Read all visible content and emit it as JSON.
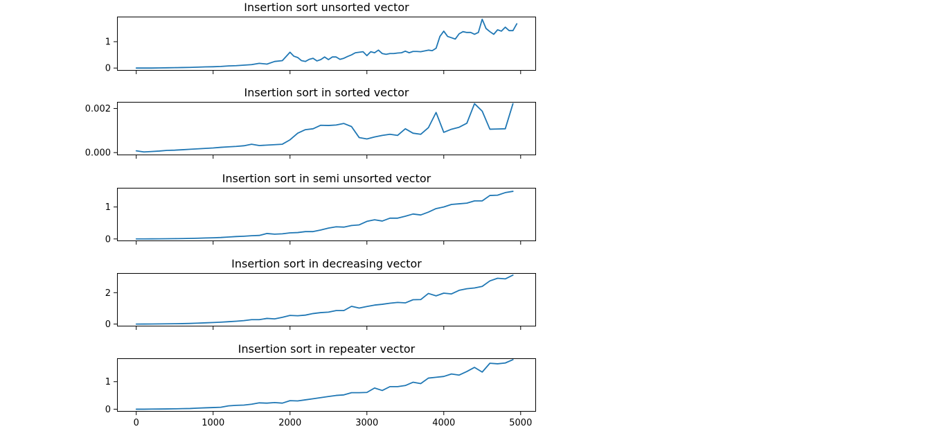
{
  "colors": {
    "line": "#1f77b4",
    "axes": "#000000",
    "background": "#ffffff"
  },
  "chart_data": [
    {
      "type": "line",
      "title": "Insertion sort unsorted vector",
      "xlim": [
        -250,
        5200
      ],
      "ylim": [
        -0.1,
        1.95
      ],
      "xticks": [
        0,
        1000,
        2000,
        3000,
        4000,
        5000
      ],
      "xtick_labels": [
        "",
        "",
        "",
        "",
        "",
        ""
      ],
      "yticks": [
        0,
        1
      ],
      "ytick_labels": [
        "0",
        "1"
      ],
      "x": [
        0,
        100,
        200,
        300,
        400,
        500,
        600,
        700,
        800,
        900,
        1000,
        1100,
        1200,
        1300,
        1400,
        1500,
        1600,
        1700,
        1800,
        1900,
        2000,
        2050,
        2100,
        2150,
        2200,
        2250,
        2300,
        2350,
        2400,
        2450,
        2500,
        2550,
        2600,
        2650,
        2700,
        2750,
        2800,
        2850,
        2900,
        2950,
        3000,
        3050,
        3100,
        3150,
        3200,
        3250,
        3300,
        3350,
        3400,
        3450,
        3500,
        3550,
        3600,
        3650,
        3700,
        3750,
        3800,
        3850,
        3900,
        3950,
        4000,
        4050,
        4100,
        4150,
        4200,
        4250,
        4300,
        4350,
        4400,
        4450,
        4500,
        4550,
        4600,
        4650,
        4700,
        4750,
        4800,
        4850,
        4900,
        4950
      ],
      "y": [
        0.0,
        0.0,
        0.0,
        0.005,
        0.01,
        0.015,
        0.02,
        0.025,
        0.035,
        0.045,
        0.05,
        0.06,
        0.08,
        0.09,
        0.11,
        0.13,
        0.18,
        0.15,
        0.25,
        0.28,
        0.6,
        0.45,
        0.4,
        0.28,
        0.25,
        0.33,
        0.37,
        0.27,
        0.32,
        0.42,
        0.32,
        0.42,
        0.42,
        0.33,
        0.37,
        0.44,
        0.5,
        0.58,
        0.6,
        0.62,
        0.47,
        0.62,
        0.58,
        0.68,
        0.55,
        0.52,
        0.55,
        0.55,
        0.57,
        0.58,
        0.64,
        0.58,
        0.63,
        0.63,
        0.62,
        0.65,
        0.68,
        0.66,
        0.75,
        1.2,
        1.4,
        1.2,
        1.15,
        1.1,
        1.3,
        1.38,
        1.35,
        1.35,
        1.28,
        1.35,
        1.85,
        1.5,
        1.38,
        1.28,
        1.45,
        1.4,
        1.55,
        1.42,
        1.42,
        1.68
      ]
    },
    {
      "type": "line",
      "title": "Insertion sort in sorted vector",
      "xlim": [
        -250,
        5200
      ],
      "ylim": [
        -0.00012,
        0.0023
      ],
      "xticks": [
        0,
        1000,
        2000,
        3000,
        4000,
        5000
      ],
      "xtick_labels": [
        "",
        "",
        "",
        "",
        "",
        ""
      ],
      "yticks": [
        0,
        0.002
      ],
      "ytick_labels": [
        "0.000",
        "0.002"
      ],
      "x": [
        0,
        100,
        200,
        300,
        400,
        500,
        600,
        700,
        800,
        900,
        1000,
        1100,
        1200,
        1300,
        1400,
        1500,
        1600,
        1700,
        1800,
        1900,
        2000,
        2100,
        2200,
        2300,
        2400,
        2500,
        2600,
        2700,
        2800,
        2900,
        3000,
        3100,
        3200,
        3300,
        3400,
        3500,
        3600,
        3700,
        3800,
        3900,
        4000,
        4100,
        4200,
        4300,
        4400,
        4500,
        4600,
        4700,
        4800,
        4900
      ],
      "y": [
        8e-05,
        3e-05,
        5e-05,
        7e-05,
        0.0001,
        0.00011,
        0.00013,
        0.00015,
        0.00017,
        0.00019,
        0.00021,
        0.00024,
        0.00026,
        0.00028,
        0.00031,
        0.00038,
        0.00032,
        0.00034,
        0.00036,
        0.00038,
        0.00058,
        0.00088,
        0.00104,
        0.00108,
        0.00124,
        0.00123,
        0.00125,
        0.00132,
        0.00118,
        0.00068,
        0.00062,
        0.00071,
        0.00078,
        0.00083,
        0.00078,
        0.00108,
        0.00088,
        0.00083,
        0.00113,
        0.00182,
        0.00092,
        0.00106,
        0.00115,
        0.00133,
        0.00222,
        0.00188,
        0.00106,
        0.00107,
        0.00108,
        0.00222
      ]
    },
    {
      "type": "line",
      "title": "Insertion sort in semi unsorted vector",
      "xlim": [
        -250,
        5200
      ],
      "ylim": [
        -0.07,
        1.6
      ],
      "xticks": [
        0,
        1000,
        2000,
        3000,
        4000,
        5000
      ],
      "xtick_labels": [
        "",
        "",
        "",
        "",
        "",
        ""
      ],
      "yticks": [
        0,
        1
      ],
      "ytick_labels": [
        "0",
        "1"
      ],
      "x": [
        0,
        100,
        200,
        300,
        400,
        500,
        600,
        700,
        800,
        900,
        1000,
        1100,
        1200,
        1300,
        1400,
        1500,
        1600,
        1700,
        1800,
        1900,
        2000,
        2100,
        2200,
        2300,
        2400,
        2500,
        2600,
        2700,
        2800,
        2900,
        3000,
        3100,
        3200,
        3300,
        3400,
        3500,
        3600,
        3700,
        3800,
        3900,
        4000,
        4100,
        4200,
        4300,
        4400,
        4500,
        4600,
        4700,
        4800,
        4900
      ],
      "y": [
        0.0,
        0.0,
        0.002,
        0.004,
        0.006,
        0.009,
        0.012,
        0.016,
        0.022,
        0.03,
        0.036,
        0.045,
        0.06,
        0.075,
        0.085,
        0.1,
        0.11,
        0.17,
        0.15,
        0.16,
        0.19,
        0.2,
        0.23,
        0.23,
        0.28,
        0.34,
        0.38,
        0.37,
        0.42,
        0.44,
        0.55,
        0.6,
        0.56,
        0.65,
        0.65,
        0.71,
        0.78,
        0.75,
        0.84,
        0.95,
        1.0,
        1.08,
        1.1,
        1.12,
        1.19,
        1.19,
        1.36,
        1.37,
        1.45,
        1.49
      ]
    },
    {
      "type": "line",
      "title": "Insertion sort in decreasing vector",
      "xlim": [
        -250,
        5200
      ],
      "ylim": [
        -0.15,
        3.25
      ],
      "xticks": [
        0,
        1000,
        2000,
        3000,
        4000,
        5000
      ],
      "xtick_labels": [
        "",
        "",
        "",
        "",
        "",
        ""
      ],
      "yticks": [
        0,
        2
      ],
      "ytick_labels": [
        "0",
        "2"
      ],
      "x": [
        0,
        100,
        200,
        300,
        400,
        500,
        600,
        700,
        800,
        900,
        1000,
        1100,
        1200,
        1300,
        1400,
        1500,
        1600,
        1700,
        1800,
        1900,
        2000,
        2100,
        2200,
        2300,
        2400,
        2500,
        2600,
        2700,
        2800,
        2900,
        3000,
        3100,
        3200,
        3300,
        3400,
        3500,
        3600,
        3700,
        3800,
        3900,
        4000,
        4100,
        4200,
        4300,
        4400,
        4500,
        4600,
        4700,
        4800,
        4900
      ],
      "y": [
        0.0,
        0.003,
        0.006,
        0.01,
        0.015,
        0.02,
        0.03,
        0.04,
        0.06,
        0.08,
        0.1,
        0.12,
        0.15,
        0.18,
        0.22,
        0.28,
        0.28,
        0.36,
        0.33,
        0.43,
        0.55,
        0.53,
        0.57,
        0.67,
        0.73,
        0.76,
        0.86,
        0.86,
        1.13,
        1.02,
        1.12,
        1.21,
        1.26,
        1.33,
        1.38,
        1.35,
        1.55,
        1.56,
        1.95,
        1.8,
        1.97,
        1.92,
        2.15,
        2.25,
        2.3,
        2.4,
        2.75,
        2.92,
        2.88,
        3.12
      ]
    },
    {
      "type": "line",
      "title": "Insertion sort in repeater vector",
      "xlim": [
        -250,
        5200
      ],
      "ylim": [
        -0.09,
        1.85
      ],
      "xticks": [
        0,
        1000,
        2000,
        3000,
        4000,
        5000
      ],
      "xtick_labels": [
        "0",
        "1000",
        "2000",
        "3000",
        "4000",
        "5000"
      ],
      "yticks": [
        0,
        1
      ],
      "ytick_labels": [
        "0",
        "1"
      ],
      "x": [
        0,
        100,
        200,
        300,
        400,
        500,
        600,
        700,
        800,
        900,
        1000,
        1100,
        1200,
        1300,
        1400,
        1500,
        1600,
        1700,
        1800,
        1900,
        2000,
        2100,
        2200,
        2300,
        2400,
        2500,
        2600,
        2700,
        2800,
        2900,
        3000,
        3100,
        3200,
        3300,
        3400,
        3500,
        3600,
        3700,
        3800,
        3900,
        4000,
        4100,
        4200,
        4300,
        4400,
        4500,
        4600,
        4700,
        4800,
        4900
      ],
      "y": [
        0.0,
        0.0,
        0.004,
        0.006,
        0.009,
        0.013,
        0.02,
        0.025,
        0.04,
        0.05,
        0.06,
        0.07,
        0.12,
        0.14,
        0.15,
        0.18,
        0.23,
        0.22,
        0.24,
        0.22,
        0.31,
        0.3,
        0.34,
        0.38,
        0.42,
        0.46,
        0.5,
        0.52,
        0.6,
        0.6,
        0.61,
        0.77,
        0.68,
        0.82,
        0.82,
        0.86,
        0.98,
        0.93,
        1.13,
        1.16,
        1.19,
        1.28,
        1.24,
        1.37,
        1.52,
        1.35,
        1.67,
        1.65,
        1.68,
        1.8
      ]
    }
  ]
}
